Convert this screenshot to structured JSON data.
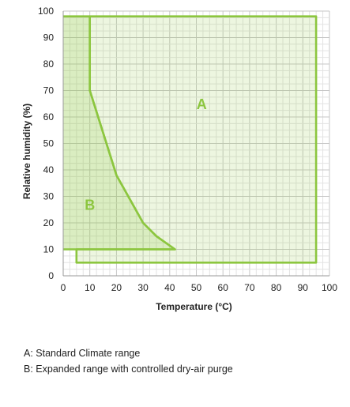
{
  "chart_data": {
    "type": "area",
    "xlabel": "Temperature (°C)",
    "ylabel": "Relative humidity (%)",
    "xlim": [
      0,
      100
    ],
    "ylim": [
      0,
      100
    ],
    "x_ticks": [
      0,
      10,
      20,
      30,
      40,
      50,
      60,
      70,
      80,
      90,
      100
    ],
    "y_ticks": [
      0,
      10,
      20,
      30,
      40,
      50,
      60,
      70,
      80,
      90,
      100
    ],
    "grid": true,
    "line_color": "#8cc63f",
    "fill_color": "#8cc63f",
    "regions": [
      {
        "name": "A",
        "points": [
          [
            10,
            98
          ],
          [
            95,
            98
          ],
          [
            95,
            5
          ],
          [
            5,
            5
          ],
          [
            5,
            10
          ],
          [
            42,
            10
          ],
          [
            35,
            15
          ],
          [
            30,
            20
          ],
          [
            20,
            38
          ],
          [
            10,
            70
          ]
        ]
      },
      {
        "name": "B",
        "points": [
          [
            0,
            98
          ],
          [
            10,
            98
          ],
          [
            10,
            70
          ],
          [
            20,
            38
          ],
          [
            30,
            20
          ],
          [
            35,
            15
          ],
          [
            42,
            10
          ],
          [
            5,
            10
          ],
          [
            0,
            10
          ]
        ]
      }
    ],
    "region_labels": [
      {
        "text": "A",
        "x": 52,
        "y": 63
      },
      {
        "text": "B",
        "x": 10,
        "y": 25
      }
    ]
  },
  "legend": {
    "a": "A: Standard Climate range",
    "b": "B: Expanded range with controlled dry-air purge"
  }
}
